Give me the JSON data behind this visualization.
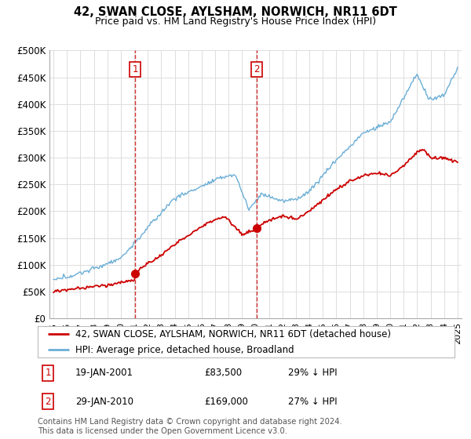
{
  "title": "42, SWAN CLOSE, AYLSHAM, NORWICH, NR11 6DT",
  "subtitle": "Price paid vs. HM Land Registry's House Price Index (HPI)",
  "legend_line1": "42, SWAN CLOSE, AYLSHAM, NORWICH, NR11 6DT (detached house)",
  "legend_line2": "HPI: Average price, detached house, Broadland",
  "annotation1_label": "1",
  "annotation1_date": "19-JAN-2001",
  "annotation1_price": "£83,500",
  "annotation1_hpi": "29% ↓ HPI",
  "annotation1_year": 2001.05,
  "annotation1_value": 83500,
  "annotation2_label": "2",
  "annotation2_date": "29-JAN-2010",
  "annotation2_price": "£169,000",
  "annotation2_hpi": "27% ↓ HPI",
  "annotation2_year": 2010.08,
  "annotation2_value": 169000,
  "footer": "Contains HM Land Registry data © Crown copyright and database right 2024.\nThis data is licensed under the Open Government Licence v3.0.",
  "red_color": "#cc0000",
  "blue_color": "#6baed6",
  "background_plot": "#ffffff",
  "grid_color": "#dddddd",
  "ylim_min": 0,
  "ylim_max": 500000,
  "xlim_min": 1994.7,
  "xlim_max": 2025.3,
  "ytick_values": [
    0,
    50000,
    100000,
    150000,
    200000,
    250000,
    300000,
    350000,
    400000,
    450000,
    500000
  ],
  "ytick_labels": [
    "£0",
    "£50K",
    "£100K",
    "£150K",
    "£200K",
    "£250K",
    "£300K",
    "£350K",
    "£400K",
    "£450K",
    "£500K"
  ],
  "xtick_values": [
    1995,
    1996,
    1997,
    1998,
    1999,
    2000,
    2001,
    2002,
    2003,
    2004,
    2005,
    2006,
    2007,
    2008,
    2009,
    2010,
    2011,
    2012,
    2013,
    2014,
    2015,
    2016,
    2017,
    2018,
    2019,
    2020,
    2021,
    2022,
    2023,
    2024,
    2025
  ]
}
